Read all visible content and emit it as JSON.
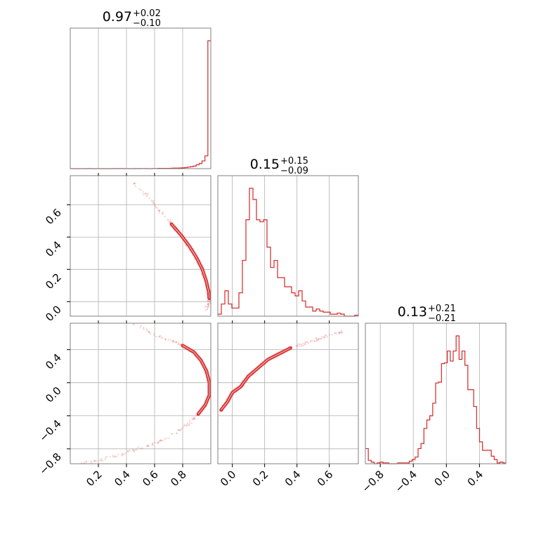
{
  "chart_data": {
    "type": "corner",
    "color": "#d62728",
    "point_color": "#e98a8b",
    "grid": true,
    "params": [
      {
        "index": 0,
        "range": [
          0.0,
          1.0
        ],
        "ticks": [
          0.2,
          0.4,
          0.6,
          0.8
        ],
        "tick_labels": [
          "0.2",
          "0.4",
          "0.6",
          "0.8"
        ],
        "title": {
          "median": "0.97",
          "plus": "+0.02",
          "minus": "−0.10"
        },
        "hist": [
          0,
          0,
          0,
          0,
          0,
          0,
          1,
          0,
          0,
          0,
          0,
          0,
          0,
          0,
          0,
          1,
          0,
          1,
          0,
          0,
          0,
          0,
          1,
          0,
          1,
          1,
          0,
          0,
          1,
          1,
          2,
          2,
          2,
          2,
          3,
          4,
          4,
          5,
          6,
          8,
          12,
          15,
          20,
          30,
          40,
          60,
          100,
          1000
        ]
      },
      {
        "index": 1,
        "range": [
          -0.09,
          0.78
        ],
        "ticks": [
          0.0,
          0.2,
          0.4,
          0.6
        ],
        "tick_labels": [
          "0.0",
          "0.2",
          "0.4",
          "0.6"
        ],
        "title": {
          "median": "0.15",
          "plus": "+0.15",
          "minus": "−0.09"
        },
        "hist": [
          2,
          12,
          25,
          12,
          8,
          8,
          23,
          55,
          95,
          126,
          115,
          95,
          93,
          95,
          68,
          48,
          55,
          38,
          38,
          29,
          29,
          23,
          20,
          25,
          15,
          9,
          9,
          5,
          7,
          5,
          4,
          4,
          2,
          2,
          3,
          2,
          0,
          0,
          0,
          1
        ]
      },
      {
        "index": 2,
        "range": [
          -0.98,
          0.72
        ],
        "ticks": [
          -0.8,
          -0.4,
          0.0,
          0.4
        ],
        "tick_labels": [
          "−0.8",
          "−0.4",
          "0.0",
          "0.4"
        ],
        "title": {
          "median": "0.13",
          "plus": "+0.21",
          "minus": "−0.21"
        },
        "hist": [
          18,
          4,
          2,
          0,
          1,
          2,
          1,
          1,
          0,
          0,
          0,
          1,
          1,
          1,
          1,
          3,
          5,
          8,
          18,
          24,
          42,
          52,
          57,
          72,
          96,
          97,
          119,
          120,
          134,
          122,
          134,
          152,
          124,
          134,
          117,
          88,
          88,
          68,
          42,
          26,
          16,
          16,
          16,
          9,
          5,
          1,
          2,
          1
        ]
      }
    ],
    "curves": {
      "p1_vs_p0": [
        [
          0.43,
          0.74
        ],
        [
          0.55,
          0.66
        ],
        [
          0.64,
          0.56
        ],
        [
          0.72,
          0.48
        ],
        [
          0.79,
          0.41
        ],
        [
          0.85,
          0.34
        ],
        [
          0.9,
          0.27
        ],
        [
          0.94,
          0.2
        ],
        [
          0.97,
          0.12
        ],
        [
          0.985,
          0.06
        ],
        [
          0.99,
          0.02
        ],
        [
          0.985,
          -0.01
        ],
        [
          0.97,
          -0.04
        ]
      ],
      "p2_vs_p0": [
        [
          0.45,
          0.72
        ],
        [
          0.6,
          0.58
        ],
        [
          0.72,
          0.5
        ],
        [
          0.8,
          0.45
        ],
        [
          0.88,
          0.37
        ],
        [
          0.93,
          0.27
        ],
        [
          0.97,
          0.14
        ],
        [
          0.99,
          0.0
        ],
        [
          0.99,
          -0.15
        ],
        [
          0.96,
          -0.27
        ],
        [
          0.91,
          -0.38
        ],
        [
          0.84,
          -0.5
        ],
        [
          0.74,
          -0.62
        ],
        [
          0.62,
          -0.72
        ],
        [
          0.48,
          -0.8
        ],
        [
          0.34,
          -0.88
        ],
        [
          0.2,
          -0.94
        ],
        [
          0.08,
          -0.98
        ]
      ],
      "p2_vs_p1": [
        [
          -0.07,
          -0.33
        ],
        [
          -0.03,
          -0.23
        ],
        [
          0.0,
          -0.12
        ],
        [
          0.05,
          -0.05
        ],
        [
          0.1,
          0.08
        ],
        [
          0.16,
          0.18
        ],
        [
          0.22,
          0.28
        ],
        [
          0.29,
          0.35
        ],
        [
          0.36,
          0.42
        ],
        [
          0.44,
          0.47
        ],
        [
          0.52,
          0.52
        ],
        [
          0.6,
          0.58
        ],
        [
          0.68,
          0.62
        ]
      ]
    }
  }
}
